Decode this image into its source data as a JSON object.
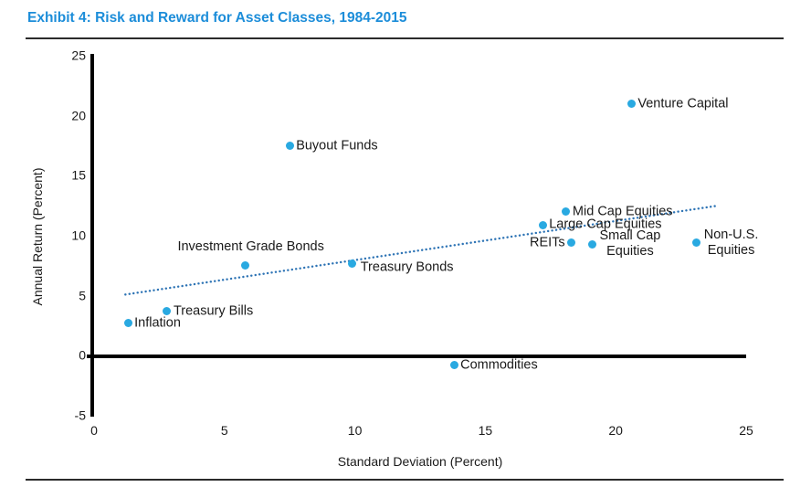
{
  "header": {
    "title": "Exhibit 4: Risk and Reward for Asset Classes, 1984-2015"
  },
  "chart_data": {
    "type": "scatter",
    "title": "Exhibit 4: Risk and Reward for Asset Classes, 1984-2015",
    "xlabel": "Standard Deviation (Percent)",
    "ylabel": "Annual Return (Percent)",
    "xlim": [
      0,
      25
    ],
    "ylim": [
      -5,
      25
    ],
    "x_ticks": [
      0,
      5,
      10,
      15,
      20,
      25
    ],
    "y_ticks": [
      25,
      20,
      15,
      10,
      5,
      0,
      -5
    ],
    "grid": false,
    "legend": false,
    "points": [
      {
        "label": "Inflation",
        "x": 1.3,
        "y": 2.7,
        "label_pos": "right"
      },
      {
        "label": "Treasury Bills",
        "x": 2.8,
        "y": 3.7,
        "label_pos": "right"
      },
      {
        "label": "Investment Grade Bonds",
        "x": 5.8,
        "y": 7.5,
        "label_pos": "above"
      },
      {
        "label": "Buyout Funds",
        "x": 7.5,
        "y": 17.5,
        "label_pos": "right"
      },
      {
        "label": "Treasury Bonds",
        "x": 9.9,
        "y": 7.7,
        "label_pos": "right-below"
      },
      {
        "label": "Commodities",
        "x": 13.8,
        "y": -0.8,
        "label_pos": "right"
      },
      {
        "label": "Large Cap Equities",
        "x": 17.2,
        "y": 10.9,
        "label_pos": "right"
      },
      {
        "label": "Mid Cap Equities",
        "x": 18.1,
        "y": 12.0,
        "label_pos": "right"
      },
      {
        "label": "REITs",
        "x": 18.3,
        "y": 9.4,
        "label_pos": "left"
      },
      {
        "label": "Small Cap\nEquities",
        "x": 19.1,
        "y": 9.3,
        "label_pos": "right-twoline"
      },
      {
        "label": "Venture Capital",
        "x": 20.6,
        "y": 21.0,
        "label_pos": "right"
      },
      {
        "label": "Non-U.S.\nEquities",
        "x": 23.1,
        "y": 9.4,
        "label_pos": "right-twoline"
      }
    ],
    "trendline": {
      "x1": 1.2,
      "y1": 5.1,
      "x2": 23.9,
      "y2": 12.5,
      "style": "dotted"
    },
    "colors": {
      "point": "#29A9E1",
      "trend": "#2E74B5",
      "title": "#1C8DD9",
      "text": "#1A1A1A",
      "axis": "#000000"
    }
  }
}
